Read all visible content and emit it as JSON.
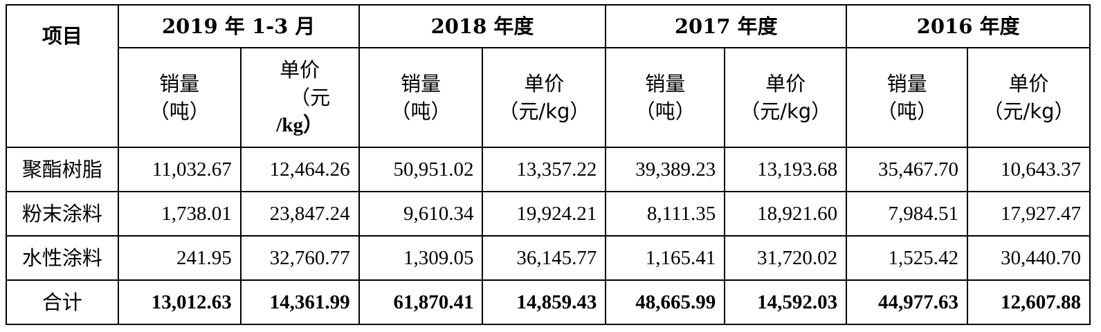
{
  "table": {
    "item_header": "项目",
    "periods": [
      "2019 年 1-3 月",
      "2018 年度",
      "2017 年度",
      "2016 年度"
    ],
    "sub_headers": {
      "volume_line1": "销量",
      "volume_line2": "（吨）",
      "price_line1": "单价",
      "price_line2": "（元/kg）",
      "price_first_col_line2": "（元",
      "price_first_col_line3": "/kg）"
    },
    "rows": [
      {
        "label": "聚酯树脂",
        "values": [
          "11,032.67",
          "12,464.26",
          "50,951.02",
          "13,357.22",
          "39,389.23",
          "13,193.68",
          "35,467.70",
          "10,643.37"
        ]
      },
      {
        "label": "粉末涂料",
        "values": [
          "1,738.01",
          "23,847.24",
          "9,610.34",
          "19,924.21",
          "8,111.35",
          "18,921.60",
          "7,984.51",
          "17,927.47"
        ]
      },
      {
        "label": "水性涂料",
        "values": [
          "241.95",
          "32,760.77",
          "1,309.05",
          "36,145.77",
          "1,165.41",
          "31,720.02",
          "1,525.42",
          "30,440.70"
        ]
      }
    ],
    "total": {
      "label": "合计",
      "values": [
        "13,012.63",
        "14,361.99",
        "61,870.41",
        "14,859.43",
        "48,665.99",
        "14,592.03",
        "44,977.63",
        "12,607.88"
      ]
    }
  }
}
